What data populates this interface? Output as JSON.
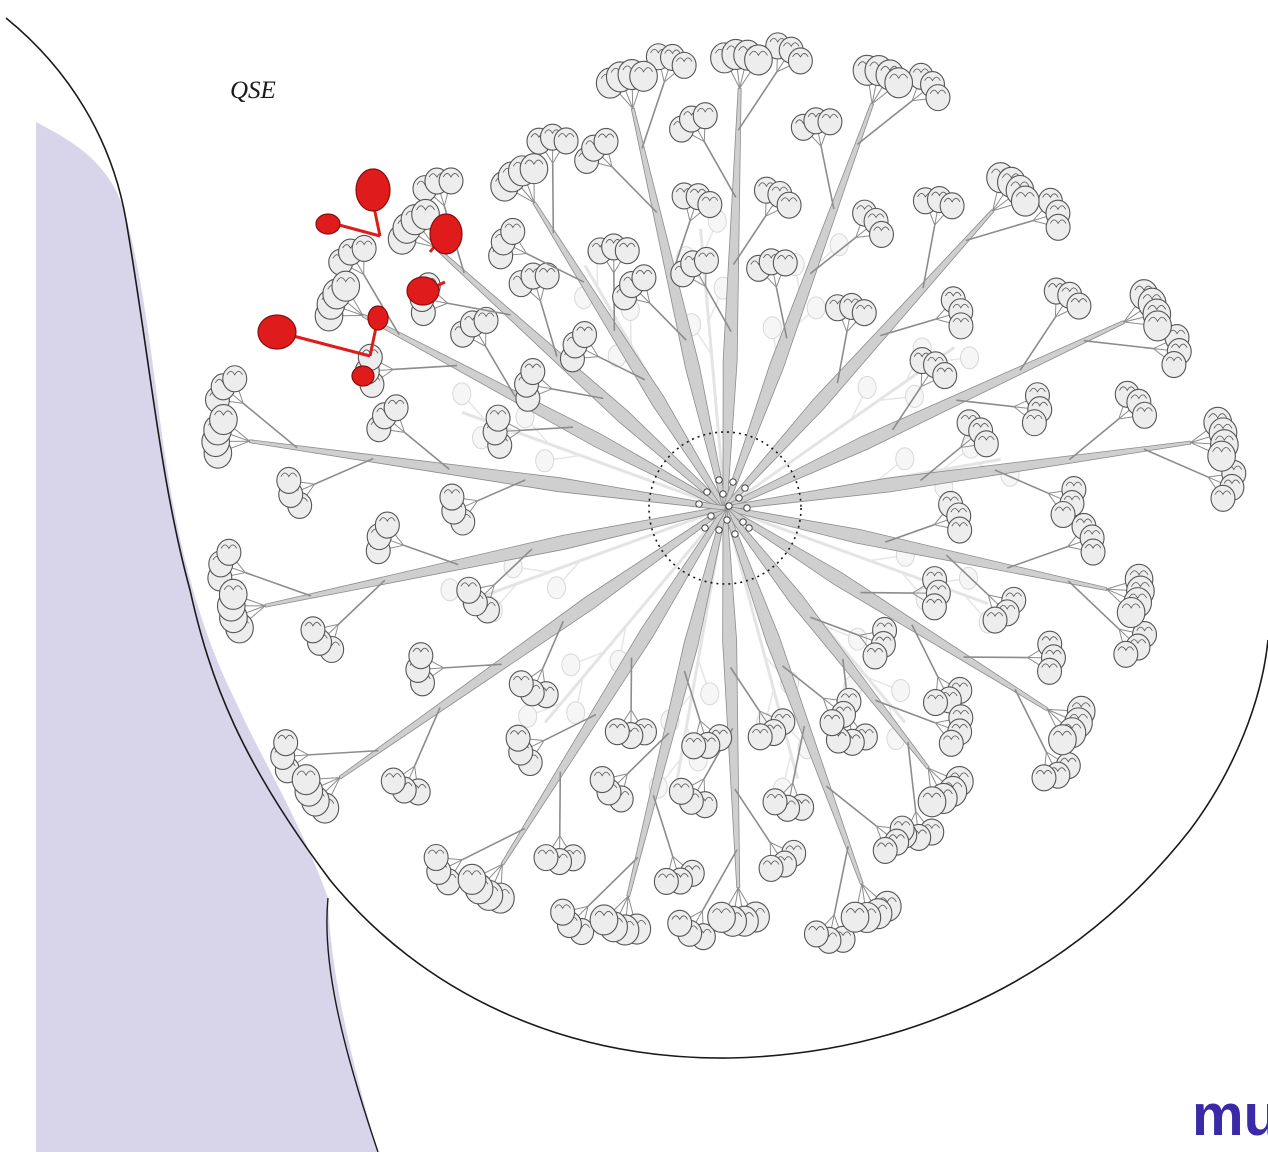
{
  "diagram": {
    "quadrant_label": "QSE",
    "watermark_text": "mu",
    "colors": {
      "background": "#ffffff",
      "chest_wall": "#d8d5ea",
      "outline": "#1a1a1a",
      "duct": "#cfcfcf",
      "duct_stroke": "#8c8c8c",
      "lobule": "#ededed",
      "lobule_stroke": "#555555",
      "highlight": "#e01b1b",
      "highlight_stroke": "#8a0c0c",
      "watermark": "#3a2aa8"
    },
    "elements": [
      "breast-outline",
      "chest-wall",
      "nipple-areola-complex",
      "lactiferous-ducts",
      "lobules",
      "highlighted-lobules"
    ]
  }
}
